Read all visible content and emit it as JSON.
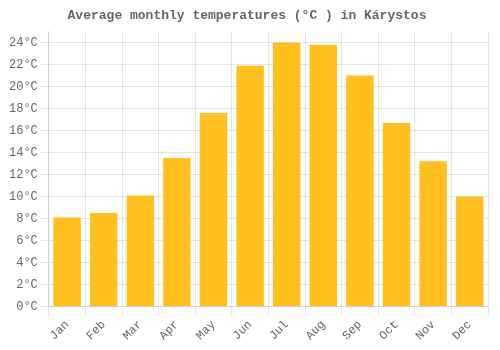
{
  "chart_data": {
    "type": "bar",
    "title": "Average monthly temperatures (°C ) in Kárystos",
    "categories": [
      "Jan",
      "Feb",
      "Mar",
      "Apr",
      "May",
      "Jun",
      "Jul",
      "Aug",
      "Sep",
      "Oct",
      "Nov",
      "Dec"
    ],
    "values": [
      8.1,
      8.5,
      10.1,
      13.5,
      17.6,
      21.9,
      24.0,
      23.8,
      21.0,
      16.7,
      13.2,
      10.0
    ],
    "color": "#FFC020",
    "ylim": [
      0,
      25
    ],
    "yticks": [
      {
        "value": 0,
        "label": "0°C"
      },
      {
        "value": 2,
        "label": "2°C"
      },
      {
        "value": 4,
        "label": "4°C"
      },
      {
        "value": 6,
        "label": "6°C"
      },
      {
        "value": 8,
        "label": "8°C"
      },
      {
        "value": 10,
        "label": "10°C"
      },
      {
        "value": 12,
        "label": "12°C"
      },
      {
        "value": 14,
        "label": "14°C"
      },
      {
        "value": 16,
        "label": "16°C"
      },
      {
        "value": 18,
        "label": "18°C"
      },
      {
        "value": 20,
        "label": "20°C"
      },
      {
        "value": 22,
        "label": "22°C"
      },
      {
        "value": 24,
        "label": "24°C"
      }
    ],
    "grid": true
  }
}
